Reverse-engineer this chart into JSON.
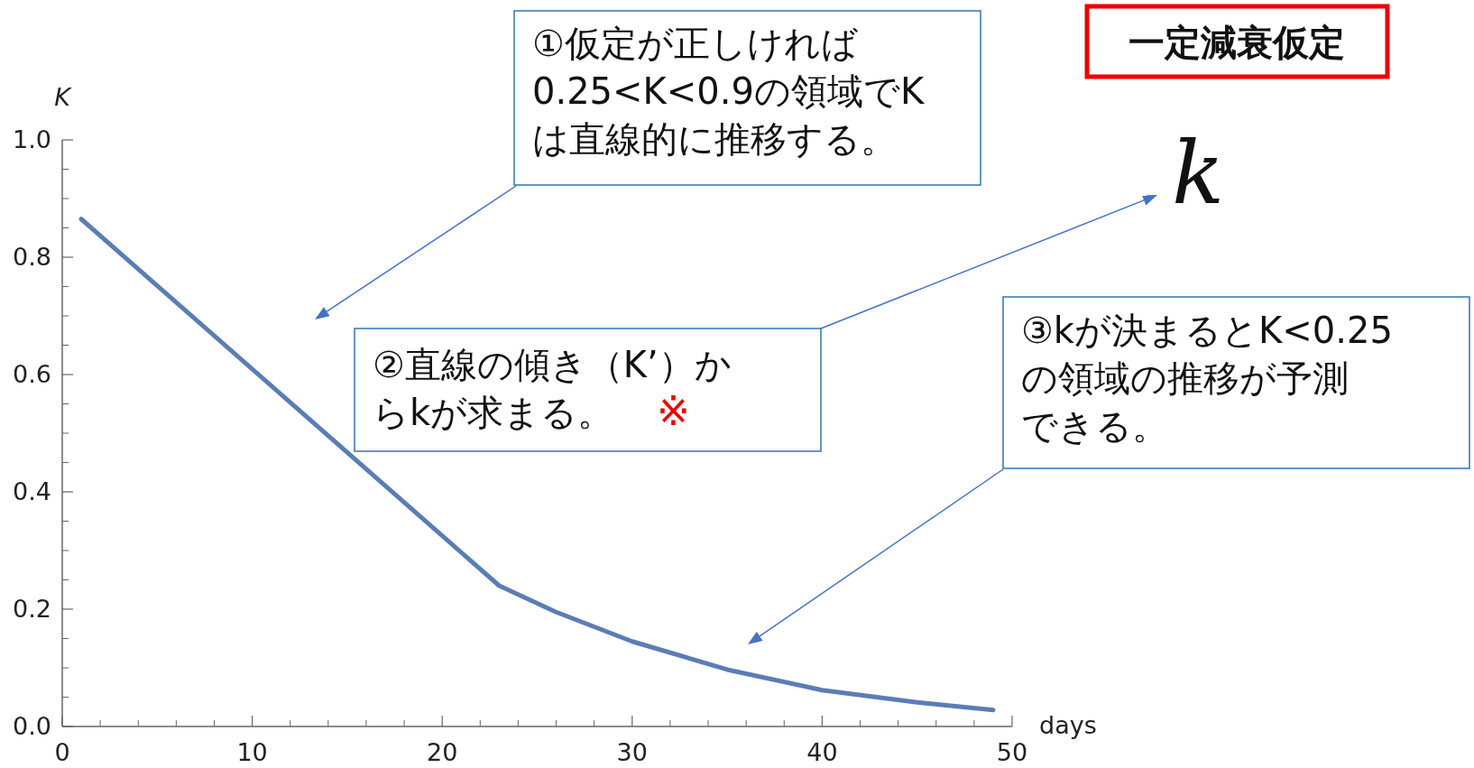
{
  "chart_data": {
    "type": "line",
    "title": "一定減衰仮定",
    "xlabel": "days",
    "ylabel": "K",
    "x": [
      1,
      23,
      26,
      30,
      35,
      40,
      45,
      49
    ],
    "series": [
      {
        "color": "#5a7db5",
        "values": [
          0.865,
          0.24,
          0.195,
          0.145,
          0.097,
          0.062,
          0.041,
          0.028
        ]
      }
    ],
    "xlim": [
      0,
      50
    ],
    "ylim": [
      0,
      1.0
    ],
    "xticks": [
      0,
      10,
      20,
      30,
      40,
      50
    ],
    "yticks": [
      {
        "value": 0,
        "label": "0.0"
      },
      {
        "value": 0.2,
        "label": "0.2"
      },
      {
        "value": 0.4,
        "label": "0.4"
      },
      {
        "value": 0.6,
        "label": "0.6"
      },
      {
        "value": 0.8,
        "label": "0.8"
      },
      {
        "value": 1.0,
        "label": "1.0"
      }
    ],
    "grid": false,
    "marker": "none",
    "line_style": "solid",
    "annotations": [
      "①仮定が正しければ0.25<K<0.9の領域でKは直線的に推移する。",
      "②直線の傾き（K’）からkが求まる。",
      "③kが決まるとK<0.25の領域の推移が予測できる。",
      "※",
      "k"
    ]
  }
}
